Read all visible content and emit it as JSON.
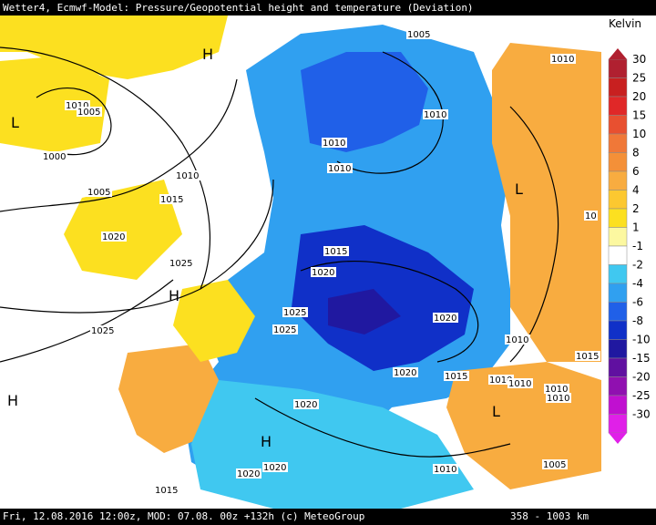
{
  "title": "Wetter4, Ecmwf-Model: Pressure/Geopotential height and temperature (Deviation)",
  "footer": {
    "left": "Fri, 12.08.2016 12:00z, MOD: 07.08. 00z +132h (c) MeteoGroup",
    "scale": "358 - 1003 km"
  },
  "legend": {
    "unit": "Kelvin",
    "levels": [
      {
        "label": "30",
        "color": "#b02030"
      },
      {
        "label": "25",
        "color": "#c82020"
      },
      {
        "label": "20",
        "color": "#e02828"
      },
      {
        "label": "15",
        "color": "#e85030"
      },
      {
        "label": "10",
        "color": "#f07838"
      },
      {
        "label": "8",
        "color": "#f49038"
      },
      {
        "label": "6",
        "color": "#f8ac40"
      },
      {
        "label": "4",
        "color": "#fcc830"
      },
      {
        "label": "2",
        "color": "#fce020"
      },
      {
        "label": "1",
        "color": "#fcf8a0"
      },
      {
        "label": "-1",
        "color": "#ffffff"
      },
      {
        "label": "-2",
        "color": "#40c8f0"
      },
      {
        "label": "-4",
        "color": "#30a0f0"
      },
      {
        "label": "-6",
        "color": "#2060e8"
      },
      {
        "label": "-8",
        "color": "#1030c8"
      },
      {
        "label": "-10",
        "color": "#2018a0"
      },
      {
        "label": "-15",
        "color": "#6010a0"
      },
      {
        "label": "-20",
        "color": "#9010b0"
      },
      {
        "label": "-25",
        "color": "#c010d0"
      },
      {
        "label": "-30",
        "color": "#e020e8"
      }
    ]
  },
  "pressure_labels": [
    "1005",
    "1010",
    "1005",
    "1000",
    "1005",
    "1010",
    "1015",
    "1020",
    "1025",
    "1025",
    "1010",
    "1010",
    "1015",
    "1020",
    "1025",
    "1025",
    "1020",
    "1020",
    "1020",
    "1015",
    "1010",
    "1010",
    "1010",
    "1010",
    "1005",
    "1010",
    "1015",
    "1020",
    "1020",
    "1015",
    "1010",
    "1010",
    "1010",
    "10"
  ],
  "centers": [
    "H",
    "L",
    "H",
    "H",
    "L",
    "L",
    "H"
  ],
  "colors": {
    "sea_white": "#ffffff",
    "land_gray": "#8c8c8c"
  }
}
